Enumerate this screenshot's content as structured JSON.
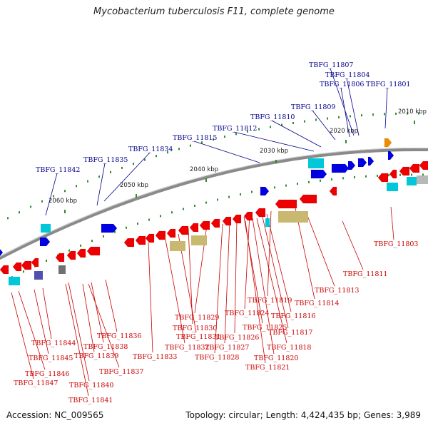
{
  "title": "Mycobacterium tuberculosis F11, complete genome",
  "footer": {
    "accession": "Accession: NC_009565",
    "summary": "Topology: circular; Length: 4,424,435 bp; Genes: 3,989"
  },
  "colors": {
    "backbone": "#8a8a8a",
    "forward_label": "#00008b",
    "reverse_label": "#cc0000",
    "forward_gene": "#0000e0",
    "reverse_gene": "#ee0000",
    "rna_gene": "#00c8d8",
    "other_gene": "#c8b870",
    "tick": "#2e8b2e"
  },
  "scale_ticks": [
    {
      "label": "2010 kbp"
    },
    {
      "label": "2020 kbp"
    },
    {
      "label": "2030 kbp"
    },
    {
      "label": "2040 kbp"
    },
    {
      "label": "2050 kbp"
    },
    {
      "label": "2060 kbp"
    }
  ],
  "forward_labels": [
    "TBFG_11807",
    "TBFG_11804",
    "TBFG_11806",
    "TBFG_11801",
    "TBFG_11809",
    "TBFG_11810",
    "TBFG_11812",
    "TBFG_11815",
    "TBFG_11834",
    "TBFG_11835",
    "TBFG_11842"
  ],
  "reverse_labels": [
    "TBFG_11803",
    "TBFG_11811",
    "TBFG_11813",
    "TBFG_11814",
    "TBFG_11819",
    "TBFG_11816",
    "TBFG_11824",
    "TBFG_11817",
    "TBFG_11825",
    "TBFG_11818",
    "TBFG_11826",
    "TBFG_11820",
    "TBFG_11821",
    "TBFG_11827",
    "TBFG_11828",
    "TBFG_11829",
    "TBFG_11830",
    "TBFG_11831",
    "TBFG_11832",
    "TBFG_11833",
    "TBFG_11836",
    "TBFG_11838",
    "TBFG_11839",
    "TBFG_11837",
    "TBFG_11844",
    "TBFG_11845",
    "TBFG_11846",
    "TBFG_11847",
    "TBFG_11840",
    "TBFG_11841"
  ]
}
